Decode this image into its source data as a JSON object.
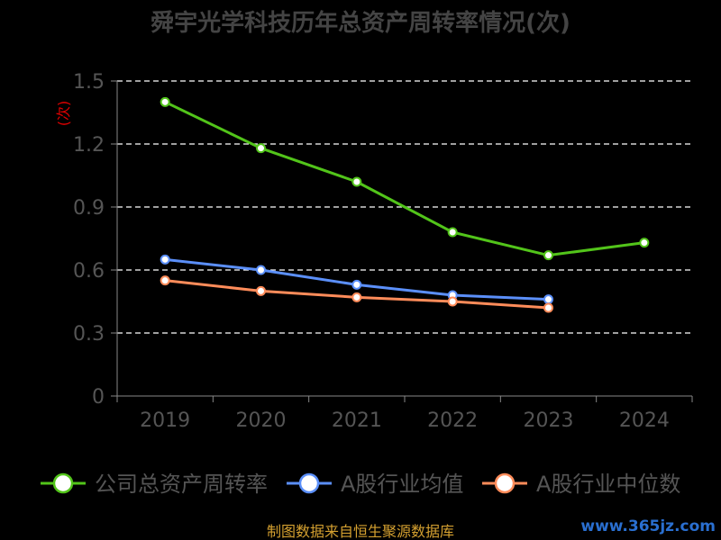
{
  "chart_data": {
    "type": "line",
    "title": "舜宇光学科技历年总资产周转率情况(次)",
    "ylabel": "(次)",
    "xlabel": "",
    "categories": [
      "2019",
      "2020",
      "2021",
      "2022",
      "2023",
      "2024"
    ],
    "ylim": [
      0,
      1.5
    ],
    "yticks": [
      "0",
      "0.3",
      "0.6",
      "0.9",
      "1.2",
      "1.5"
    ],
    "grid": "dashed-horizontal",
    "legend_position": "bottom",
    "series": [
      {
        "name": "公司总资产周转率",
        "color": "#52c41a",
        "values": [
          1.4,
          1.18,
          1.02,
          0.78,
          0.67,
          0.73
        ]
      },
      {
        "name": "A股行业均值",
        "color": "#5b8ff9",
        "values": [
          0.65,
          0.6,
          0.53,
          0.48,
          0.46,
          null
        ]
      },
      {
        "name": "A股行业中位数",
        "color": "#ff8c5a",
        "values": [
          0.55,
          0.5,
          0.47,
          0.45,
          0.42,
          null
        ]
      }
    ]
  },
  "footer": {
    "source": "制图数据来自恒生聚源数据库",
    "watermark": "www.365jz.com"
  },
  "colors": {
    "axis": "#888888",
    "grid": "#ffffff",
    "ylabel": "#e00000",
    "tick_text": "#555555",
    "title": "#444444",
    "legend_text": "#555555",
    "source": "#d4a030",
    "watermark": "#2a6fd0"
  }
}
